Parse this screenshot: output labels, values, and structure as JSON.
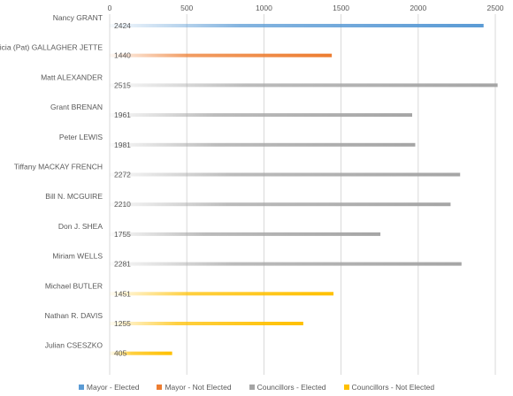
{
  "chart_data": {
    "type": "bar",
    "orientation": "horizontal",
    "title": "",
    "xlabel": "",
    "ylabel": "",
    "xlim": [
      0,
      2500
    ],
    "x_ticks": [
      0,
      500,
      1000,
      1500,
      2000,
      2500
    ],
    "x_axis_position": "top",
    "grid": "vertical",
    "legend_position": "bottom",
    "categories": [
      "Nancy GRANT",
      "Patricia (Pat) GALLAGHER JETTE",
      "Matt ALEXANDER",
      "Grant BRENAN",
      "Peter LEWIS",
      "Tiffany MACKAY FRENCH",
      "Bill N. MCGUIRE",
      "Don J. SHEA",
      "Miriam WELLS",
      "Michael BUTLER",
      "Nathan R. DAVIS",
      "Julian CSESZKO"
    ],
    "values": [
      2424,
      1440,
      2515,
      1961,
      1981,
      2272,
      2210,
      1755,
      2281,
      1451,
      1255,
      405
    ],
    "groups": [
      "Mayor - Elected",
      "Mayor - Not Elected",
      "Councillors - Elected",
      "Councillors - Elected",
      "Councillors - Elected",
      "Councillors - Elected",
      "Councillors - Elected",
      "Councillors - Elected",
      "Councillors - Elected",
      "Councillors - Not Elected",
      "Councillors - Not Elected",
      "Councillors - Not Elected"
    ],
    "series": [
      {
        "name": "Mayor - Elected",
        "color": "#5b9bd5"
      },
      {
        "name": "Mayor - Not Elected",
        "color": "#ed7d31"
      },
      {
        "name": "Councillors - Elected",
        "color": "#a5a5a5"
      },
      {
        "name": "Councillors - Not Elected",
        "color": "#ffc000"
      }
    ]
  }
}
